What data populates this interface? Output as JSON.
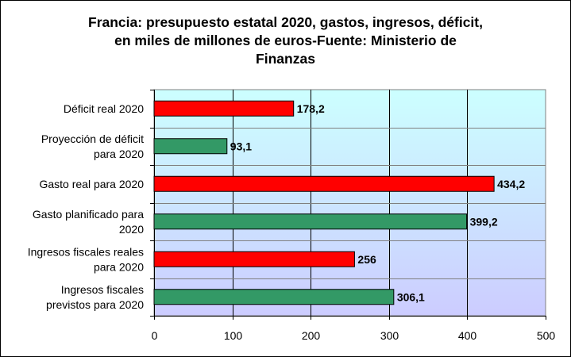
{
  "chart_data": {
    "type": "bar",
    "orientation": "horizontal",
    "title_lines": [
      "Francia: presupuesto estatal 2020, gastos, ingresos, déficit,",
      "en miles de millones de euros-Fuente: Ministerio de",
      "Finanzas"
    ],
    "categories": [
      [
        "Déficit real 2020"
      ],
      [
        "Proyección de déficit",
        "para 2020"
      ],
      [
        "Gasto real para 2020"
      ],
      [
        "Gasto planificado para",
        "2020"
      ],
      [
        "Ingresos fiscales reales",
        "para 2020"
      ],
      [
        "Ingresos fiscales",
        "previstos para 2020"
      ]
    ],
    "values": [
      178.2,
      93.1,
      434.2,
      399.2,
      256,
      306.1
    ],
    "value_labels": [
      "178,2",
      "93,1",
      "434,2",
      "399,2",
      "256",
      "306,1"
    ],
    "bar_colors": [
      "#ff0000",
      "#339966",
      "#ff0000",
      "#339966",
      "#ff0000",
      "#339966"
    ],
    "xlim": [
      0,
      500
    ],
    "x_ticks": [
      "0",
      "100",
      "200",
      "300",
      "400",
      "500"
    ],
    "grid": "vertical",
    "plot_background": "gradient light cyan to lavender",
    "legend": "none"
  }
}
